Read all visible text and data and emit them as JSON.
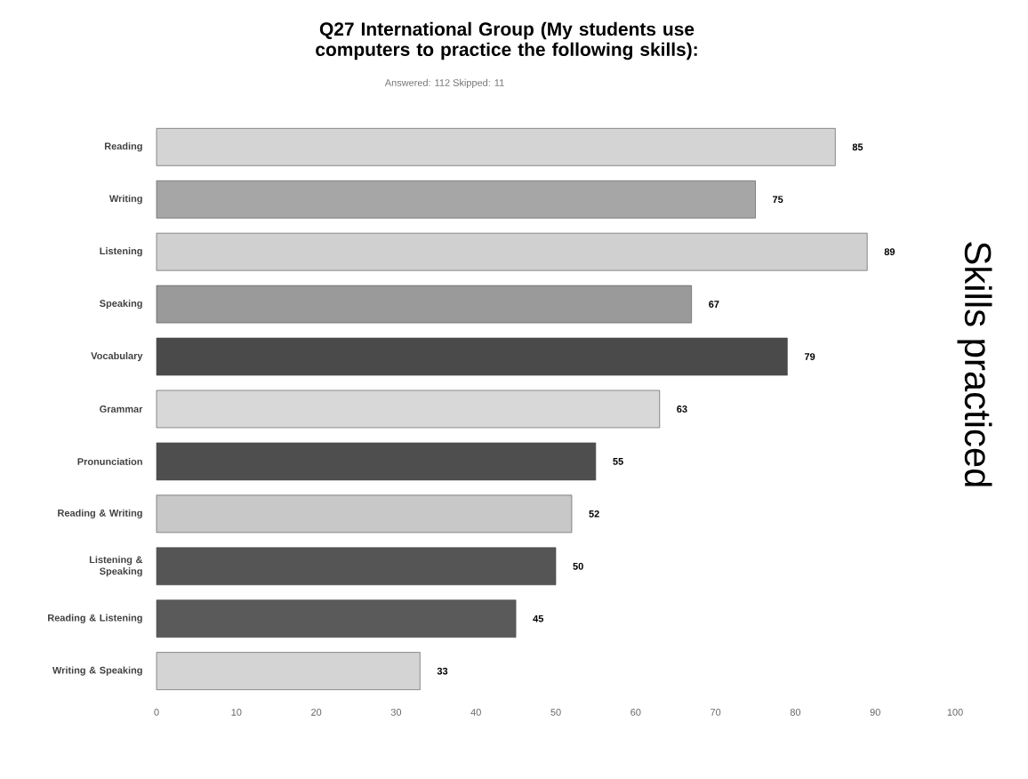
{
  "chart_data": {
    "type": "bar",
    "orientation": "horizontal",
    "title": "Q27 International Group (My students use computers to practice the following skills):",
    "subtitle": "Answered: 112    Skipped: 11",
    "categories": [
      "Reading",
      "Writing",
      "Listening",
      "Speaking",
      "Vocabulary",
      "Grammar",
      "Pronunciation",
      "Reading & Writing",
      "Listening & Speaking",
      "Reading & Listening",
      "Writing & Speaking"
    ],
    "values": [
      85,
      75,
      89,
      67,
      79,
      63,
      55,
      52,
      50,
      45,
      33
    ],
    "colors": [
      "#d4d4d4",
      "#a6a6a6",
      "#d0d0d0",
      "#9a9a9a",
      "#4a4a4a",
      "#d8d8d8",
      "#4e4e4e",
      "#c8c8c8",
      "#555555",
      "#5a5a5a",
      "#d4d4d4"
    ],
    "xlim": [
      0,
      100
    ],
    "xticks": [
      0,
      10,
      20,
      30,
      40,
      50,
      60,
      70,
      80,
      90,
      100
    ],
    "data_labels": true,
    "grid": false,
    "annotations": [
      "Skills practiced"
    ]
  }
}
